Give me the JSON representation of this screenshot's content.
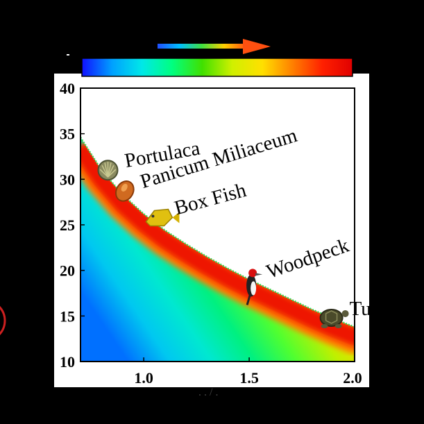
{
  "chart_data": {
    "type": "heatmap",
    "title": "",
    "xlabel": "",
    "ylabel": "",
    "xlim": [
      0.7,
      2.0
    ],
    "ylim": [
      10,
      40
    ],
    "x_ticks": [
      "1.0",
      "1.5",
      "2.0"
    ],
    "y_ticks": [
      "10",
      "15",
      "20",
      "25",
      "30",
      "35",
      "40"
    ],
    "x_tick_values": [
      1.0,
      1.5,
      2.0
    ],
    "y_tick_values": [
      10,
      15,
      20,
      25,
      30,
      35,
      40
    ],
    "colormap": [
      "#1010ff",
      "#00a0ff",
      "#00e8e8",
      "#00ff80",
      "#40e000",
      "#d0f000",
      "#ffe000",
      "#ff8000",
      "#ff2000",
      "#e00000"
    ],
    "arrow_colors": [
      "#2050ff",
      "#00c0ff",
      "#40e040",
      "#ffd000",
      "#ff5010"
    ],
    "boundary_curve": {
      "x": [
        0.7,
        0.8,
        0.9,
        1.0,
        1.1,
        1.2,
        1.3,
        1.4,
        1.5,
        1.6,
        1.7,
        1.8,
        1.9,
        2.0
      ],
      "y": [
        34.6,
        31.0,
        28.3,
        26.2,
        24.4,
        22.9,
        21.5,
        20.2,
        19.0,
        17.9,
        16.8,
        15.7,
        14.7,
        13.8
      ]
    },
    "annotations": [
      {
        "label": "Portulaca",
        "icon": "shell-icon",
        "x": 0.83,
        "y": 31.0,
        "rotation": -10
      },
      {
        "label": "Panicum Miliaceum",
        "icon": "seed-icon",
        "x": 0.91,
        "y": 28.7,
        "rotation": -17
      },
      {
        "label": "Box Fish",
        "icon": "boxfish-icon",
        "x": 1.07,
        "y": 25.8,
        "rotation": -15
      },
      {
        "label": "Woodpeck",
        "icon": "woodpecker-icon",
        "x": 1.51,
        "y": 18.8,
        "rotation": -19
      },
      {
        "label": "Tu",
        "icon": "turtle-icon",
        "x": 1.89,
        "y": 14.8,
        "rotation": 0
      }
    ]
  }
}
